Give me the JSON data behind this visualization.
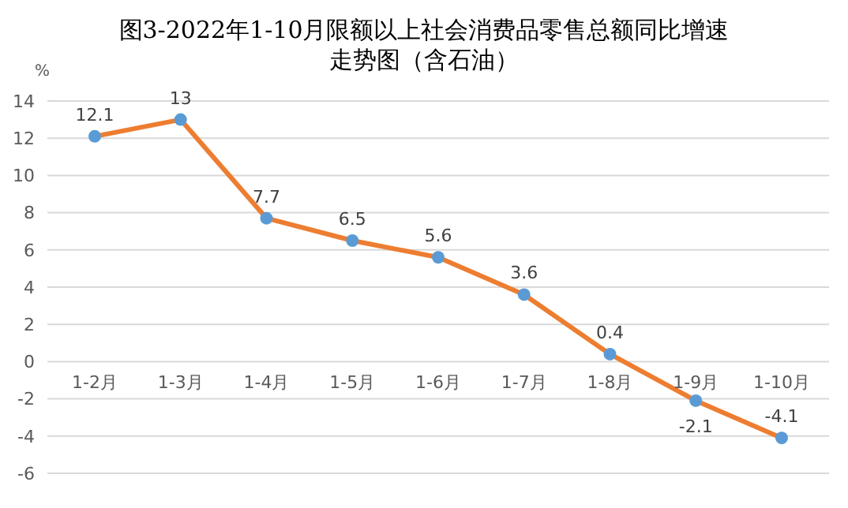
{
  "chart_data": {
    "type": "line",
    "title": "图3-2022年1-10月限额以上社会消费品零售总额同比增速走势图（含石油）",
    "ylabel": "%",
    "categories": [
      "1-2月",
      "1-3月",
      "1-4月",
      "1-5月",
      "1-6月",
      "1-7月",
      "1-8月",
      "1-9月",
      "1-10月"
    ],
    "series": [
      {
        "color": "#ed7d31",
        "colors": [
          "#5b9bd5",
          "#5b9bd5",
          "#5b9bd5",
          "#5b9bd5",
          "#5b9bd5",
          "#5b9bd5",
          "#5b9bd5",
          "#5b9bd5",
          "#5b9bd5"
        ],
        "values": [
          12.1,
          13,
          7.7,
          6.5,
          5.6,
          3.6,
          0.4,
          -2.1,
          -4.1
        ]
      }
    ],
    "ylim": [
      -6,
      14
    ],
    "yticks": [
      -6,
      -4,
      -2,
      0,
      2,
      4,
      6,
      8,
      10,
      12,
      14
    ],
    "grid": "y",
    "marker": "circle",
    "data_labels": true,
    "legend": false
  }
}
